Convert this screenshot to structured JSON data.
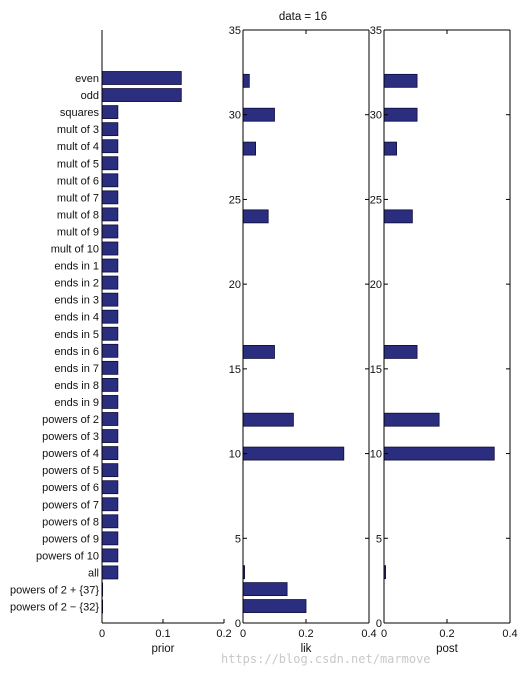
{
  "watermark": "https://blog.csdn.net/marmove",
  "chart_data": [
    {
      "type": "bar",
      "orientation": "horizontal",
      "title": "",
      "xlabel": "prior",
      "xlim": [
        0,
        0.2
      ],
      "xticks": [
        "0",
        "0.1",
        "0.2"
      ],
      "categories": [
        "even",
        "odd",
        "squares",
        "mult of 3",
        "mult of 4",
        "mult of 5",
        "mult of 6",
        "mult of 7",
        "mult of 8",
        "mult of 9",
        "mult of 10",
        "ends in 1",
        "ends in 2",
        "ends in 3",
        "ends in 4",
        "ends in 5",
        "ends in 6",
        "ends in 7",
        "ends in 8",
        "ends in 9",
        "powers of 2",
        "powers of 3",
        "powers of 4",
        "powers of 5",
        "powers of 6",
        "powers of 7",
        "powers of 8",
        "powers of 9",
        "powers of 10",
        "all",
        "powers of 2 + {37}",
        "powers of 2 − {32}"
      ],
      "values": [
        0.13,
        0.13,
        0.026,
        0.026,
        0.026,
        0.026,
        0.026,
        0.026,
        0.026,
        0.026,
        0.026,
        0.026,
        0.026,
        0.026,
        0.026,
        0.026,
        0.026,
        0.026,
        0.026,
        0.026,
        0.026,
        0.026,
        0.026,
        0.026,
        0.026,
        0.026,
        0.026,
        0.026,
        0.026,
        0.026,
        0.001,
        0.001
      ]
    },
    {
      "type": "bar",
      "orientation": "horizontal",
      "title": "data = 16",
      "xlabel": "lik",
      "xlim": [
        0,
        0.4
      ],
      "xticks": [
        "0",
        "0.2",
        "0.4"
      ],
      "ylim": [
        0,
        35
      ],
      "yticks": [
        "0",
        "5",
        "10",
        "15",
        "20",
        "25",
        "30",
        "35"
      ],
      "values": [
        0.2,
        0.14,
        0.005,
        0.32,
        0.16,
        0.1,
        0.08,
        0.04,
        0.1,
        0.02
      ]
    },
    {
      "type": "bar",
      "orientation": "horizontal",
      "title": "",
      "xlabel": "post",
      "xlim": [
        0,
        0.4
      ],
      "xticks": [
        "0",
        "0.2",
        "0.4"
      ],
      "ylim": [
        0,
        35
      ],
      "yticks": [
        "0",
        "5",
        "10",
        "15",
        "20",
        "25",
        "30",
        "35"
      ],
      "values": [
        0.005,
        0.35,
        0.175,
        0.105,
        0.09,
        0.04,
        0.105,
        0.105
      ]
    }
  ]
}
